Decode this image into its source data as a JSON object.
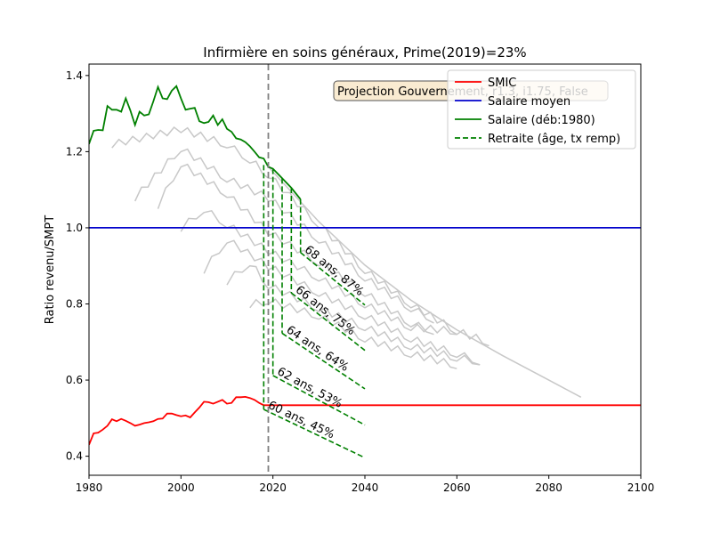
{
  "chart_data": {
    "type": "line",
    "title": "Infirmière en soins généraux, Prime(2019)=23%",
    "xlabel": "",
    "ylabel": "Ratio revenu/SMPT",
    "xlim": [
      1980,
      2100
    ],
    "ylim": [
      0.35,
      1.43
    ],
    "x_ticks": [
      1980,
      2000,
      2020,
      2040,
      2060,
      2080,
      2100
    ],
    "y_ticks": [
      0.4,
      0.6,
      0.8,
      1.0,
      1.2,
      1.4
    ],
    "grid": false,
    "legend_position": "top-right",
    "annotation_box": "Projection Gouvernement, r1.3, i1.75, False",
    "vline_x": 2019,
    "colors": {
      "smic": "#ff0000",
      "salaire_moyen": "#0000cc",
      "salaire": "#008000",
      "retraite": "#008000",
      "cohorts": "#c8c8c8",
      "vline": "#808080"
    },
    "series": [
      {
        "name": "SMIC",
        "x": [
          1980,
          1981,
          1982,
          1983,
          1984,
          1985,
          1986,
          1987,
          1988,
          1989,
          1990,
          1991,
          1992,
          1993,
          1994,
          1995,
          1996,
          1997,
          1998,
          1999,
          2000,
          2001,
          2002,
          2003,
          2004,
          2005,
          2006,
          2007,
          2008,
          2009,
          2010,
          2011,
          2012,
          2013,
          2014,
          2015,
          2016,
          2017,
          2018,
          2019,
          2020,
          2030,
          2040,
          2060,
          2080,
          2100
        ],
        "values": [
          0.43,
          0.46,
          0.462,
          0.47,
          0.48,
          0.497,
          0.492,
          0.498,
          0.493,
          0.487,
          0.48,
          0.483,
          0.487,
          0.489,
          0.492,
          0.498,
          0.499,
          0.512,
          0.512,
          0.508,
          0.505,
          0.507,
          0.502,
          0.515,
          0.528,
          0.543,
          0.542,
          0.538,
          0.543,
          0.548,
          0.538,
          0.54,
          0.555,
          0.555,
          0.556,
          0.553,
          0.548,
          0.54,
          0.534,
          0.534,
          0.534,
          0.534,
          0.534,
          0.534,
          0.534,
          0.534
        ]
      },
      {
        "name": "Salaire moyen",
        "x": [
          1980,
          2100
        ],
        "values": [
          1.0,
          1.0
        ]
      },
      {
        "name": "Salaire (déb:1980)",
        "x": [
          1980,
          1981,
          1982,
          1983,
          1984,
          1985,
          1986,
          1987,
          1988,
          1989,
          1990,
          1991,
          1992,
          1993,
          1994,
          1995,
          1996,
          1997,
          1998,
          1999,
          2000,
          2001,
          2002,
          2003,
          2004,
          2005,
          2006,
          2007,
          2008,
          2009,
          2010,
          2011,
          2012,
          2013,
          2014,
          2015,
          2016,
          2017,
          2018,
          2019,
          2020,
          2022,
          2024,
          2026
        ],
        "values": [
          1.22,
          1.255,
          1.257,
          1.256,
          1.32,
          1.31,
          1.31,
          1.305,
          1.34,
          1.308,
          1.27,
          1.305,
          1.295,
          1.298,
          1.332,
          1.37,
          1.34,
          1.338,
          1.36,
          1.372,
          1.34,
          1.31,
          1.313,
          1.315,
          1.28,
          1.275,
          1.278,
          1.295,
          1.27,
          1.285,
          1.26,
          1.252,
          1.235,
          1.232,
          1.225,
          1.214,
          1.2,
          1.185,
          1.182,
          1.16,
          1.155,
          1.13,
          1.105,
          1.075
        ]
      },
      {
        "name": "Retraite (âge, tx remp)",
        "x": [],
        "values": []
      }
    ],
    "retraite_lines": [
      {
        "label": "60 ans, 45%",
        "x_drop": 2018,
        "y_top": 1.165,
        "y_start": 0.523,
        "x_end": 2040,
        "y_end": 0.396
      },
      {
        "label": "62 ans, 53%",
        "x_drop": 2020,
        "y_top": 1.155,
        "y_start": 0.612,
        "x_end": 2040,
        "y_end": 0.482
      },
      {
        "label": "64 ans, 64%",
        "x_drop": 2022,
        "y_top": 1.13,
        "y_start": 0.723,
        "x_end": 2040,
        "y_end": 0.577
      },
      {
        "label": "66 ans, 75%",
        "x_drop": 2024,
        "y_top": 1.105,
        "y_start": 0.829,
        "x_end": 2040,
        "y_end": 0.678
      },
      {
        "label": "68 ans, 87%",
        "x_drop": 2026,
        "y_top": 1.075,
        "y_start": 0.935,
        "x_end": 2040,
        "y_end": 0.797
      }
    ],
    "cohort_lines": [
      {
        "x": [
          2019,
          2030,
          2040,
          2050,
          2060,
          2070,
          2080,
          2087
        ],
        "values": [
          1.16,
          1.016,
          0.902,
          0.81,
          0.732,
          0.664,
          0.6,
          0.555
        ],
        "zigzag": false
      },
      {
        "x": [
          1985,
          2000,
          2010,
          2015,
          2019,
          2030,
          2040,
          2050,
          2060,
          2067
        ],
        "values": [
          1.21,
          1.25,
          1.21,
          1.17,
          1.13,
          1.0,
          0.88,
          0.79,
          0.72,
          0.69
        ],
        "zigzag": true
      },
      {
        "x": [
          1990,
          2000,
          2010,
          2019,
          2030,
          2040,
          2050,
          2055
        ],
        "values": [
          1.07,
          1.2,
          1.12,
          1.07,
          0.96,
          0.86,
          0.78,
          0.75
        ],
        "zigzag": true
      },
      {
        "x": [
          1995,
          2000,
          2010,
          2019,
          2030,
          2040,
          2050,
          2055
        ],
        "values": [
          1.05,
          1.16,
          1.08,
          0.98,
          0.9,
          0.82,
          0.74,
          0.72
        ],
        "zigzag": true
      },
      {
        "x": [
          2000,
          2005,
          2010,
          2019,
          2030,
          2040,
          2050,
          2060
        ],
        "values": [
          0.99,
          1.04,
          1.0,
          0.93,
          0.86,
          0.79,
          0.73,
          0.72
        ],
        "zigzag": true
      },
      {
        "x": [
          2005,
          2010,
          2019,
          2030,
          2040,
          2050,
          2060,
          2065
        ],
        "values": [
          0.88,
          0.96,
          0.89,
          0.82,
          0.76,
          0.7,
          0.66,
          0.64
        ],
        "zigzag": true
      },
      {
        "x": [
          2010,
          2015,
          2019,
          2030,
          2040,
          2050,
          2060,
          2065
        ],
        "values": [
          0.85,
          0.9,
          0.84,
          0.78,
          0.73,
          0.68,
          0.65,
          0.64
        ],
        "zigzag": true
      },
      {
        "x": [
          2015,
          2019,
          2030,
          2040,
          2050,
          2060
        ],
        "values": [
          0.79,
          0.8,
          0.76,
          0.7,
          0.66,
          0.63
        ],
        "zigzag": true
      }
    ]
  }
}
